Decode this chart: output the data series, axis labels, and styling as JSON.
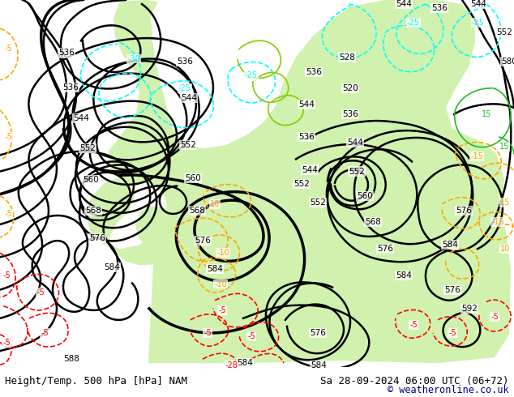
{
  "title_left": "Height/Temp. 500 hPa [hPa] NAM",
  "title_right": "Sa 28-09-2024 06:00 UTC (06+72)",
  "copyright": "© weatheronline.co.uk",
  "bg_color": "#ffffff",
  "map_bg": "#e8e8e8",
  "green_fill": "#c8f0a0",
  "gray_land": "#b8b8b8",
  "fig_width": 6.34,
  "fig_height": 4.9,
  "dpi": 100,
  "title_fontsize": 9.0,
  "copyright_color": "#000080"
}
